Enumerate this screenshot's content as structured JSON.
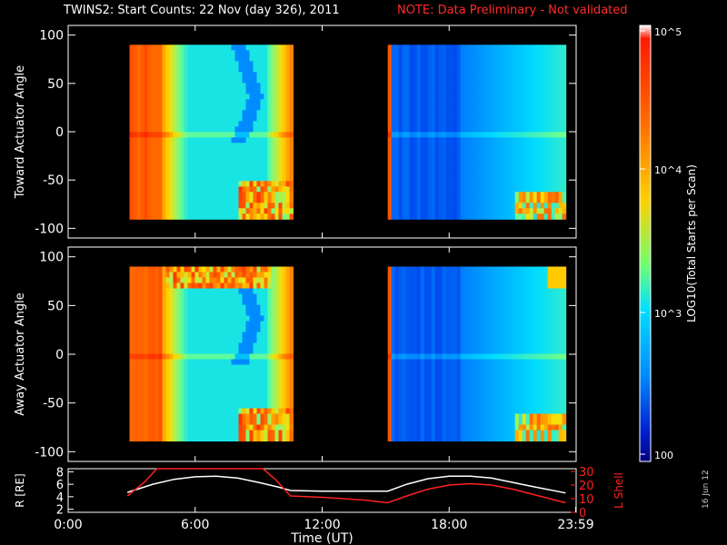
{
  "title": "TWINS2: Start Counts: 22 Nov (day 326), 2011",
  "note": "NOTE: Data Preliminary - Not validated",
  "stamp": "16 Jun 12",
  "colorbar": {
    "label": "LOG10(Total Starts per Scan)",
    "ticks": [
      "10^5",
      "10^4",
      "10^3",
      "100"
    ]
  },
  "colors": {
    "note": "#ff2a2a",
    "line_white": "#ffffff",
    "line_red": "#ff2020"
  },
  "chart_data": [
    {
      "type": "heatmap",
      "title": "",
      "ylabel": "Toward Actuator Angle",
      "ylim": [
        -110,
        110
      ],
      "yticks": [
        100,
        50,
        0,
        -50,
        -100
      ],
      "xlim": [
        0,
        24
      ],
      "data_blocks_ut_hours": [
        [
          2.9,
          10.6
        ],
        [
          15.1,
          23.5
        ]
      ],
      "angle_range": [
        -88,
        90
      ]
    },
    {
      "type": "heatmap",
      "title": "",
      "ylabel": "Away Actuator Angle",
      "ylim": [
        -110,
        110
      ],
      "yticks": [
        100,
        50,
        0,
        -50,
        -100
      ],
      "xlim": [
        0,
        24
      ],
      "data_blocks_ut_hours": [
        [
          2.9,
          10.6
        ],
        [
          15.1,
          23.5
        ]
      ],
      "angle_range": [
        -88,
        90
      ]
    },
    {
      "type": "line",
      "xlabel": "Time (UT)",
      "x_ticklabels": [
        "0:00",
        "6:00",
        "12:00",
        "18:00",
        "23:59"
      ],
      "x_tick_values": [
        0,
        6,
        12,
        18,
        23.98
      ],
      "xlim": [
        0,
        24
      ],
      "left_axis": {
        "label": "R [RE]",
        "ticks": [
          2,
          4,
          6,
          8
        ],
        "range": [
          1.5,
          8.5
        ]
      },
      "right_axis": {
        "label": "L Shell",
        "ticks": [
          0,
          10,
          20,
          30
        ],
        "range": [
          0,
          32
        ]
      },
      "series": [
        {
          "axis": "left",
          "x": [
            2.8,
            4,
            5,
            6,
            7,
            8,
            9,
            10,
            10.5,
            12,
            14,
            15.1,
            16,
            17,
            18,
            19,
            20,
            21,
            22,
            23.5
          ],
          "y": [
            4.7,
            6.0,
            6.8,
            7.2,
            7.3,
            7.0,
            6.3,
            5.5,
            5.0,
            4.9,
            4.9,
            4.9,
            6.0,
            6.9,
            7.3,
            7.3,
            7.0,
            6.3,
            5.6,
            4.6
          ]
        },
        {
          "axis": "right",
          "x": [
            2.8,
            3.6,
            4.2,
            9.2,
            9.8,
            10.5,
            12,
            14,
            15.1,
            16,
            17,
            18,
            19,
            20,
            21,
            22,
            23.5
          ],
          "y": [
            12,
            22,
            32,
            32,
            24,
            12,
            11,
            9,
            7,
            12,
            17,
            20,
            21,
            20,
            17,
            13,
            7
          ]
        }
      ]
    }
  ]
}
